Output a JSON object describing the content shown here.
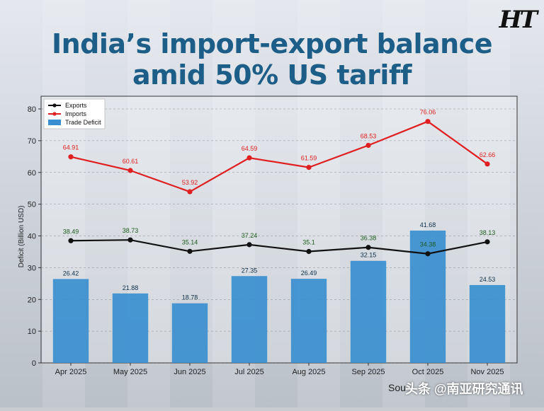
{
  "logo": "HT",
  "title_line1": "India’s import-export balance",
  "title_line2": "amid 50% US tariff",
  "source_text": "Sou",
  "watermark": "头条 @南亚研究通讯",
  "colors": {
    "title": "#1c5e88",
    "exports": "#111111",
    "imports": "#e02020",
    "deficit": "#3a8fd0",
    "export_label": "#1e5a1e"
  },
  "chart_data": {
    "type": "bar",
    "categories": [
      "Apr 2025",
      "May 2025",
      "Jun 2025",
      "Jul 2025",
      "Aug 2025",
      "Sep 2025",
      "Oct 2025",
      "Nov 2025"
    ],
    "ylabel": "Deficit (Billion USD)",
    "xlabel": "",
    "ylim": [
      0,
      80
    ],
    "yticks": [
      0,
      10,
      20,
      30,
      40,
      50,
      60,
      70,
      80
    ],
    "legend_position": "top-left",
    "series": [
      {
        "name": "Exports",
        "kind": "line",
        "values": [
          38.49,
          38.73,
          35.14,
          37.24,
          35.1,
          36.38,
          34.38,
          38.13
        ],
        "labels": [
          "38.49",
          "38.73",
          "35.14",
          "37.24",
          "35.1",
          "36.38",
          "34.38",
          "38.13"
        ]
      },
      {
        "name": "Imports",
        "kind": "line",
        "values": [
          64.91,
          60.61,
          53.92,
          64.59,
          61.59,
          68.53,
          76.06,
          62.66
        ],
        "labels": [
          "64.91",
          "60.61",
          "53.92",
          "64.59",
          "61.59",
          "68.53",
          "76.06",
          "62.66"
        ]
      },
      {
        "name": "Trade Deficit",
        "kind": "bar",
        "values": [
          26.42,
          21.88,
          18.78,
          27.35,
          26.49,
          32.15,
          41.68,
          24.53
        ],
        "labels": [
          "26.42",
          "21.88",
          "18.78",
          "27.35",
          "26.49",
          "32.15",
          "41.68",
          "24.53"
        ]
      }
    ]
  }
}
